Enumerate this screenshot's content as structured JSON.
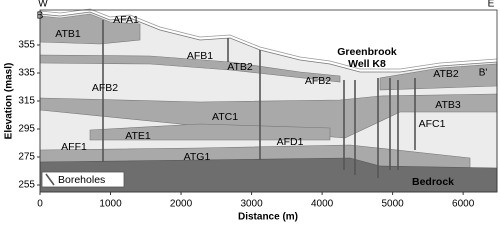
{
  "chart_data": {
    "type": "cross-section",
    "xlabel": "Distance (m)",
    "ylabel": "Elevation (masl)",
    "xlim": [
      0,
      6480
    ],
    "ylim": [
      250,
      380
    ],
    "xticks": [
      0,
      1000,
      2000,
      3000,
      4000,
      5000,
      6000
    ],
    "yticks": [
      255,
      275,
      295,
      315,
      335,
      355
    ],
    "compass": [
      "W",
      "E"
    ],
    "section_ends": [
      "B",
      "B'"
    ],
    "well_label": [
      "Greenbrook",
      "Well K8"
    ],
    "units": [
      "ATB1",
      "AFA1",
      "AFB1",
      "ATB2",
      "AFB2",
      "ATB2",
      "AFB2",
      "ATB3",
      "ATC1",
      "ATE1",
      "AFC1",
      "AFF1",
      "AFD1",
      "ATG1",
      "Bedrock"
    ],
    "legend": "Boreholes"
  }
}
